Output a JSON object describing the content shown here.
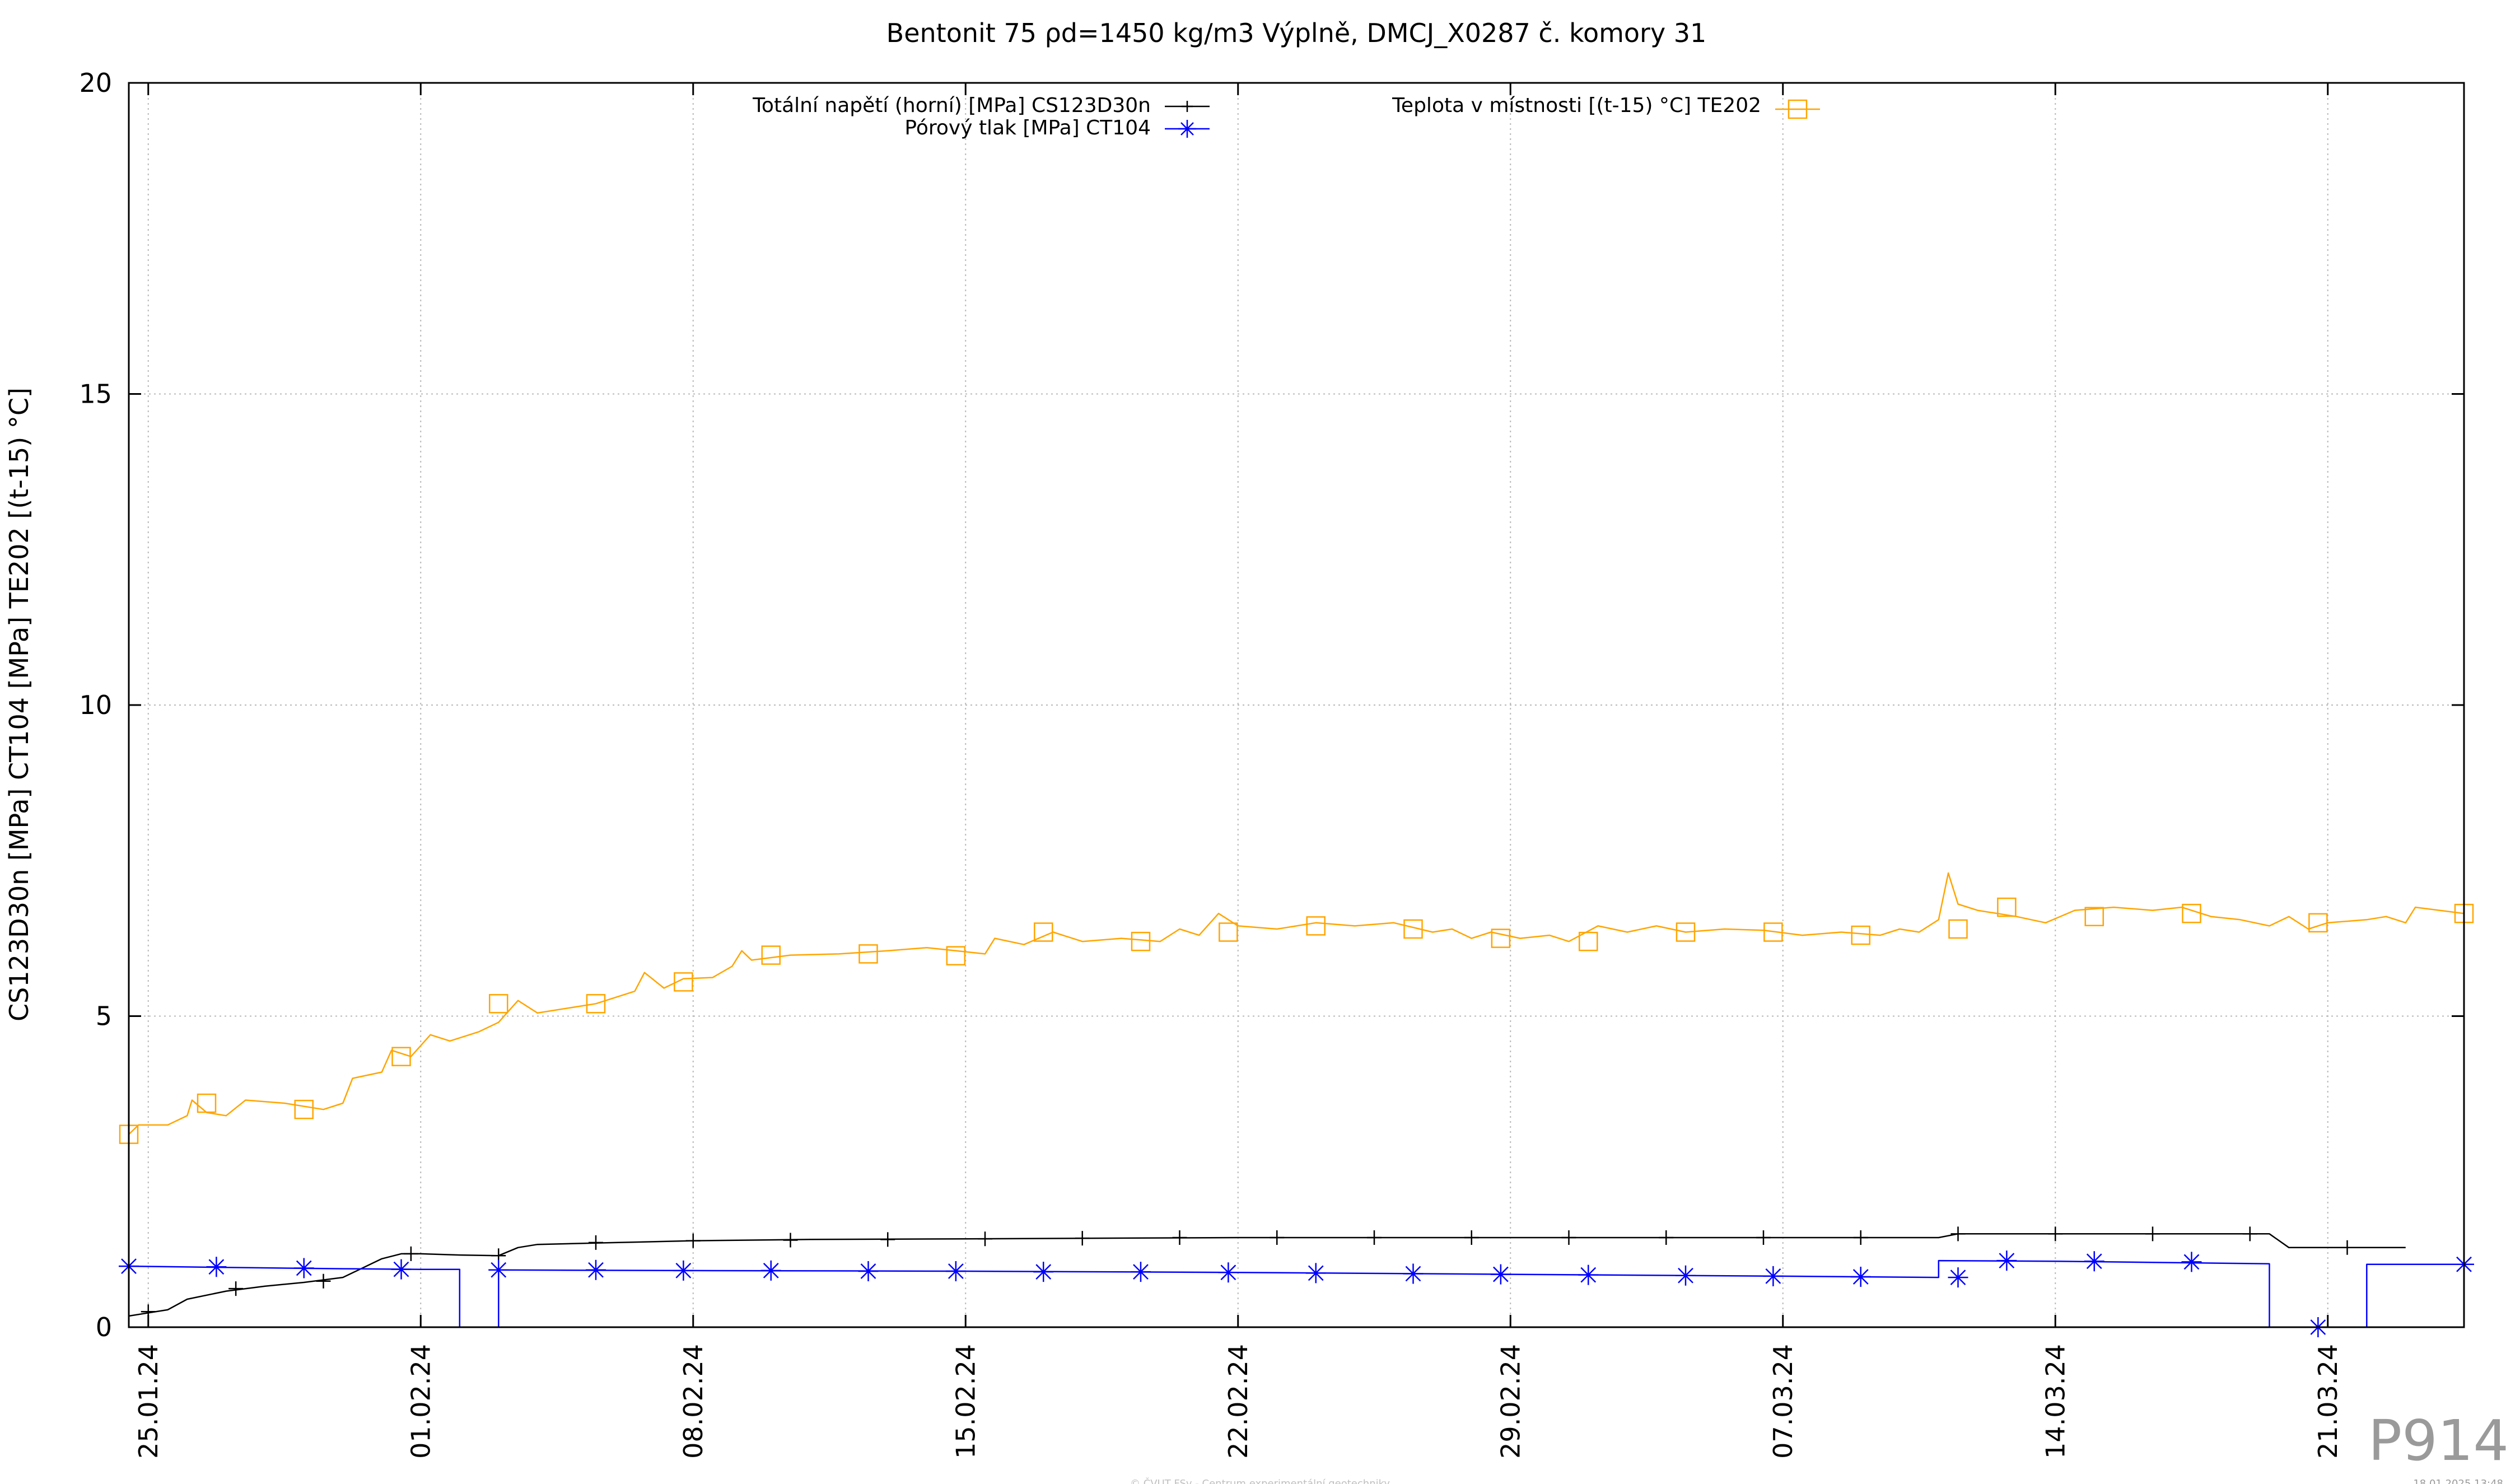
{
  "chart_data": {
    "type": "line",
    "title": "Bentonit 75 ρd=1450 kg/m3 Výplně, DMCJ_X0287 č. komory 31",
    "ylabel": "CS123D30n [MPa] CT104 [MPa] TE202 [(t-15) °C]",
    "xlabel": "",
    "ylim": [
      0,
      20
    ],
    "y_ticks": [
      0,
      5,
      10,
      15,
      20
    ],
    "x_range": [
      "2024-01-24T12:00",
      "2024-03-24T12:00"
    ],
    "x_ticks": [
      {
        "date": "2024-01-25",
        "label": "25.01.24"
      },
      {
        "date": "2024-02-01",
        "label": "01.02.24"
      },
      {
        "date": "2024-02-08",
        "label": "08.02.24"
      },
      {
        "date": "2024-02-15",
        "label": "15.02.24"
      },
      {
        "date": "2024-02-22",
        "label": "22.02.24"
      },
      {
        "date": "2024-02-29",
        "label": "29.02.24"
      },
      {
        "date": "2024-03-07",
        "label": "07.03.24"
      },
      {
        "date": "2024-03-14",
        "label": "14.03.24"
      },
      {
        "date": "2024-03-21",
        "label": "21.03.24"
      }
    ],
    "grid": true,
    "legend_position": "top",
    "series": [
      {
        "name": "Totální napětí (horní) [MPa] CS123D30n",
        "color": "#000000",
        "marker": "plus",
        "points": [
          [
            "2024-01-24T12:00",
            0.18
          ],
          [
            "2024-01-25T12:00",
            0.28
          ],
          [
            "2024-01-26T00:00",
            0.45
          ],
          [
            "2024-01-27T00:00",
            0.58
          ],
          [
            "2024-01-28T00:00",
            0.66
          ],
          [
            "2024-01-29T00:00",
            0.72
          ],
          [
            "2024-01-30T00:00",
            0.8
          ],
          [
            "2024-01-31T00:00",
            1.1
          ],
          [
            "2024-01-31T12:00",
            1.18
          ],
          [
            "2024-02-01T00:00",
            1.18
          ],
          [
            "2024-02-02T00:00",
            1.16
          ],
          [
            "2024-02-03T00:00",
            1.15
          ],
          [
            "2024-02-03T12:00",
            1.28
          ],
          [
            "2024-02-04T00:00",
            1.33
          ],
          [
            "2024-02-06T00:00",
            1.36
          ],
          [
            "2024-02-08T00:00",
            1.39
          ],
          [
            "2024-02-11T00:00",
            1.41
          ],
          [
            "2024-02-15T00:00",
            1.42
          ],
          [
            "2024-02-22T00:00",
            1.44
          ],
          [
            "2024-02-29T00:00",
            1.44
          ],
          [
            "2024-03-07T00:00",
            1.44
          ],
          [
            "2024-03-11T00:00",
            1.44
          ],
          [
            "2024-03-11T12:00",
            1.5
          ],
          [
            "2024-03-14T00:00",
            1.5
          ],
          [
            "2024-03-19T12:00",
            1.5
          ],
          [
            "2024-03-20T00:00",
            1.28
          ],
          [
            "2024-03-23T00:00",
            1.28
          ]
        ],
        "marker_points": [
          [
            "2024-01-25T00:00",
            0.25
          ],
          [
            "2024-01-27T06:00",
            0.62
          ],
          [
            "2024-01-29T12:00",
            0.74
          ],
          [
            "2024-01-31T18:00",
            1.18
          ],
          [
            "2024-02-03T00:00",
            1.15
          ],
          [
            "2024-02-05T12:00",
            1.36
          ],
          [
            "2024-02-08T00:00",
            1.39
          ],
          [
            "2024-02-10T12:00",
            1.4
          ],
          [
            "2024-02-13T00:00",
            1.41
          ],
          [
            "2024-02-15T12:00",
            1.42
          ],
          [
            "2024-02-18T00:00",
            1.43
          ],
          [
            "2024-02-20T12:00",
            1.44
          ],
          [
            "2024-02-23T00:00",
            1.44
          ],
          [
            "2024-02-25T12:00",
            1.44
          ],
          [
            "2024-02-28T00:00",
            1.44
          ],
          [
            "2024-03-01T12:00",
            1.44
          ],
          [
            "2024-03-04T00:00",
            1.44
          ],
          [
            "2024-03-06T12:00",
            1.44
          ],
          [
            "2024-03-09T00:00",
            1.44
          ],
          [
            "2024-03-11T12:00",
            1.5
          ],
          [
            "2024-03-14T00:00",
            1.5
          ],
          [
            "2024-03-16T12:00",
            1.5
          ],
          [
            "2024-03-19T00:00",
            1.5
          ],
          [
            "2024-03-21T12:00",
            1.28
          ]
        ]
      },
      {
        "name": "Pórový tlak [MPa] CT104",
        "color": "#0000ff",
        "marker": "asterisk",
        "points": [
          [
            "2024-01-24T12:00",
            0.98
          ],
          [
            "2024-01-27T00:00",
            0.96
          ],
          [
            "2024-01-30T00:00",
            0.94
          ],
          [
            "2024-02-01T00:00",
            0.93
          ],
          [
            "2024-02-02T00:00",
            0.93
          ],
          [
            "2024-02-02T00:00",
            0.0
          ],
          [
            "2024-02-03T00:00",
            0.0
          ],
          [
            "2024-02-03T00:00",
            0.92
          ],
          [
            "2024-02-08T00:00",
            0.91
          ],
          [
            "2024-02-15T00:00",
            0.9
          ],
          [
            "2024-02-22T00:00",
            0.88
          ],
          [
            "2024-02-29T00:00",
            0.85
          ],
          [
            "2024-03-07T00:00",
            0.82
          ],
          [
            "2024-03-11T00:00",
            0.8
          ],
          [
            "2024-03-11T00:00",
            1.07
          ],
          [
            "2024-03-14T00:00",
            1.06
          ],
          [
            "2024-03-19T12:00",
            1.02
          ],
          [
            "2024-03-19T12:00",
            0.0
          ],
          [
            "2024-03-22T00:00",
            0.0
          ],
          [
            "2024-03-22T00:00",
            1.01
          ],
          [
            "2024-03-24T12:00",
            1.01
          ]
        ],
        "marker_points": [
          [
            "2024-01-24T12:00",
            0.98
          ],
          [
            "2024-01-26T18:00",
            0.97
          ],
          [
            "2024-01-29T00:00",
            0.95
          ],
          [
            "2024-01-31T12:00",
            0.93
          ],
          [
            "2024-02-03T00:00",
            0.92
          ],
          [
            "2024-02-05T12:00",
            0.92
          ],
          [
            "2024-02-07T18:00",
            0.91
          ],
          [
            "2024-02-10T00:00",
            0.91
          ],
          [
            "2024-02-12T12:00",
            0.9
          ],
          [
            "2024-02-14T18:00",
            0.9
          ],
          [
            "2024-02-17T00:00",
            0.89
          ],
          [
            "2024-02-19T12:00",
            0.89
          ],
          [
            "2024-02-21T18:00",
            0.88
          ],
          [
            "2024-02-24T00:00",
            0.87
          ],
          [
            "2024-02-26T12:00",
            0.86
          ],
          [
            "2024-02-28T18:00",
            0.85
          ],
          [
            "2024-03-02T00:00",
            0.84
          ],
          [
            "2024-03-04T12:00",
            0.83
          ],
          [
            "2024-03-06T18:00",
            0.82
          ],
          [
            "2024-03-09T00:00",
            0.81
          ],
          [
            "2024-03-11T12:00",
            0.8
          ],
          [
            "2024-03-12T18:00",
            1.07
          ],
          [
            "2024-03-15T00:00",
            1.06
          ],
          [
            "2024-03-17T12:00",
            1.05
          ],
          [
            "2024-03-20T18:00",
            0.0
          ],
          [
            "2024-03-24T12:00",
            1.01
          ]
        ]
      },
      {
        "name": "Teplota v místnosti [(t-15) °C] TE202",
        "color": "#ffa500",
        "marker": "square",
        "points": [
          [
            "2024-01-24T12:00",
            3.1
          ],
          [
            "2024-01-24T18:00",
            3.25
          ],
          [
            "2024-01-25T12:00",
            3.25
          ],
          [
            "2024-01-26T00:00",
            3.4
          ],
          [
            "2024-01-26T03:00",
            3.65
          ],
          [
            "2024-01-26T12:00",
            3.45
          ],
          [
            "2024-01-27T00:00",
            3.4
          ],
          [
            "2024-01-27T12:00",
            3.65
          ],
          [
            "2024-01-28T12:00",
            3.6
          ],
          [
            "2024-01-29T12:00",
            3.5
          ],
          [
            "2024-01-30T00:00",
            3.6
          ],
          [
            "2024-01-30T06:00",
            4.0
          ],
          [
            "2024-01-31T00:00",
            4.1
          ],
          [
            "2024-01-31T06:00",
            4.45
          ],
          [
            "2024-01-31T18:00",
            4.35
          ],
          [
            "2024-02-01T06:00",
            4.7
          ],
          [
            "2024-02-01T18:00",
            4.6
          ],
          [
            "2024-02-02T12:00",
            4.75
          ],
          [
            "2024-02-03T00:00",
            4.9
          ],
          [
            "2024-02-03T12:00",
            5.25
          ],
          [
            "2024-02-04T00:00",
            5.05
          ],
          [
            "2024-02-05T12:00",
            5.2
          ],
          [
            "2024-02-06T12:00",
            5.4
          ],
          [
            "2024-02-06T18:00",
            5.7
          ],
          [
            "2024-02-07T06:00",
            5.45
          ],
          [
            "2024-02-07T18:00",
            5.6
          ],
          [
            "2024-02-08T12:00",
            5.62
          ],
          [
            "2024-02-09T00:00",
            5.8
          ],
          [
            "2024-02-09T06:00",
            6.05
          ],
          [
            "2024-02-09T12:00",
            5.9
          ],
          [
            "2024-02-10T12:00",
            5.98
          ],
          [
            "2024-02-11T18:00",
            6.0
          ],
          [
            "2024-02-13T00:00",
            6.05
          ],
          [
            "2024-02-14T00:00",
            6.1
          ],
          [
            "2024-02-14T18:00",
            6.05
          ],
          [
            "2024-02-15T12:00",
            6.0
          ],
          [
            "2024-02-15T18:00",
            6.25
          ],
          [
            "2024-02-16T12:00",
            6.15
          ],
          [
            "2024-02-17T06:00",
            6.35
          ],
          [
            "2024-02-18T00:00",
            6.2
          ],
          [
            "2024-02-19T00:00",
            6.25
          ],
          [
            "2024-02-20T00:00",
            6.2
          ],
          [
            "2024-02-20T12:00",
            6.4
          ],
          [
            "2024-02-21T00:00",
            6.3
          ],
          [
            "2024-02-21T12:00",
            6.65
          ],
          [
            "2024-02-22T00:00",
            6.45
          ],
          [
            "2024-02-23T00:00",
            6.4
          ],
          [
            "2024-02-24T00:00",
            6.5
          ],
          [
            "2024-02-25T00:00",
            6.45
          ],
          [
            "2024-02-26T00:00",
            6.5
          ],
          [
            "2024-02-27T00:00",
            6.35
          ],
          [
            "2024-02-27T12:00",
            6.4
          ],
          [
            "2024-02-28T00:00",
            6.25
          ],
          [
            "2024-02-28T12:00",
            6.35
          ],
          [
            "2024-02-29T06:00",
            6.25
          ],
          [
            "2024-03-01T00:00",
            6.3
          ],
          [
            "2024-03-01T12:00",
            6.2
          ],
          [
            "2024-03-02T06:00",
            6.45
          ],
          [
            "2024-03-03T00:00",
            6.35
          ],
          [
            "2024-03-03T18:00",
            6.45
          ],
          [
            "2024-03-04T12:00",
            6.35
          ],
          [
            "2024-03-05T12:00",
            6.4
          ],
          [
            "2024-03-06T12:00",
            6.38
          ],
          [
            "2024-03-07T12:00",
            6.3
          ],
          [
            "2024-03-08T12:00",
            6.35
          ],
          [
            "2024-03-09T12:00",
            6.3
          ],
          [
            "2024-03-10T00:00",
            6.4
          ],
          [
            "2024-03-10T12:00",
            6.35
          ],
          [
            "2024-03-11T00:00",
            6.55
          ],
          [
            "2024-03-11T06:00",
            7.3
          ],
          [
            "2024-03-11T12:00",
            6.8
          ],
          [
            "2024-03-12T00:00",
            6.7
          ],
          [
            "2024-03-13T00:00",
            6.6
          ],
          [
            "2024-03-13T18:00",
            6.5
          ],
          [
            "2024-03-14T12:00",
            6.7
          ],
          [
            "2024-03-15T12:00",
            6.75
          ],
          [
            "2024-03-16T12:00",
            6.7
          ],
          [
            "2024-03-17T06:00",
            6.75
          ],
          [
            "2024-03-18T00:00",
            6.6
          ],
          [
            "2024-03-18T18:00",
            6.55
          ],
          [
            "2024-03-19T12:00",
            6.45
          ],
          [
            "2024-03-20T00:00",
            6.6
          ],
          [
            "2024-03-20T12:00",
            6.4
          ],
          [
            "2024-03-21T00:00",
            6.5
          ],
          [
            "2024-03-22T00:00",
            6.55
          ],
          [
            "2024-03-22T12:00",
            6.6
          ],
          [
            "2024-03-23T00:00",
            6.5
          ],
          [
            "2024-03-23T06:00",
            6.75
          ],
          [
            "2024-03-24T12:00",
            6.65
          ]
        ],
        "marker_points": [
          [
            "2024-01-24T12:00",
            3.1
          ],
          [
            "2024-01-26T12:00",
            3.6
          ],
          [
            "2024-01-29T00:00",
            3.5
          ],
          [
            "2024-01-31T12:00",
            4.35
          ],
          [
            "2024-02-03T00:00",
            5.2
          ],
          [
            "2024-02-05T12:00",
            5.2
          ],
          [
            "2024-02-07T18:00",
            5.55
          ],
          [
            "2024-02-10T00:00",
            5.98
          ],
          [
            "2024-02-12T12:00",
            6.0
          ],
          [
            "2024-02-14T18:00",
            5.97
          ],
          [
            "2024-02-17T00:00",
            6.35
          ],
          [
            "2024-02-19T12:00",
            6.2
          ],
          [
            "2024-02-21T18:00",
            6.35
          ],
          [
            "2024-02-24T00:00",
            6.45
          ],
          [
            "2024-02-26T12:00",
            6.4
          ],
          [
            "2024-02-28T18:00",
            6.25
          ],
          [
            "2024-03-02T00:00",
            6.2
          ],
          [
            "2024-03-04T12:00",
            6.35
          ],
          [
            "2024-03-06T18:00",
            6.35
          ],
          [
            "2024-03-09T00:00",
            6.3
          ],
          [
            "2024-03-11T12:00",
            6.4
          ],
          [
            "2024-03-12T18:00",
            6.75
          ],
          [
            "2024-03-15T00:00",
            6.6
          ],
          [
            "2024-03-17T12:00",
            6.65
          ],
          [
            "2024-03-20T18:00",
            6.5
          ],
          [
            "2024-03-24T12:00",
            6.65
          ]
        ]
      }
    ]
  },
  "watermark": "P914",
  "footer_copyright": "© ČVUT FSv - Centrum experimentální geotechniky",
  "footer_timestamp": "18.01.2025 13:48"
}
